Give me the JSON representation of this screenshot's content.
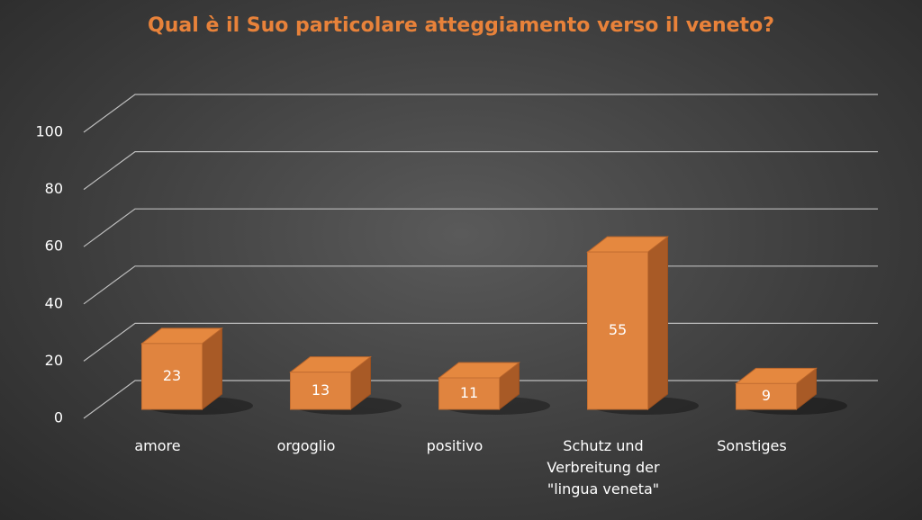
{
  "chart_data": {
    "type": "bar3d",
    "title": "Qual è il Suo particolare atteggiamento verso il veneto?",
    "categories": [
      "amore",
      "orgoglio",
      "positivo",
      "Schutz und Verbreitung der \"lingua veneta\"",
      "Sonstiges"
    ],
    "values": [
      23,
      13,
      11,
      55,
      9
    ],
    "color": "#e0843f",
    "ylim": [
      0,
      100
    ],
    "yticks": [
      0,
      20,
      40,
      60,
      80,
      100
    ],
    "grid": true
  }
}
